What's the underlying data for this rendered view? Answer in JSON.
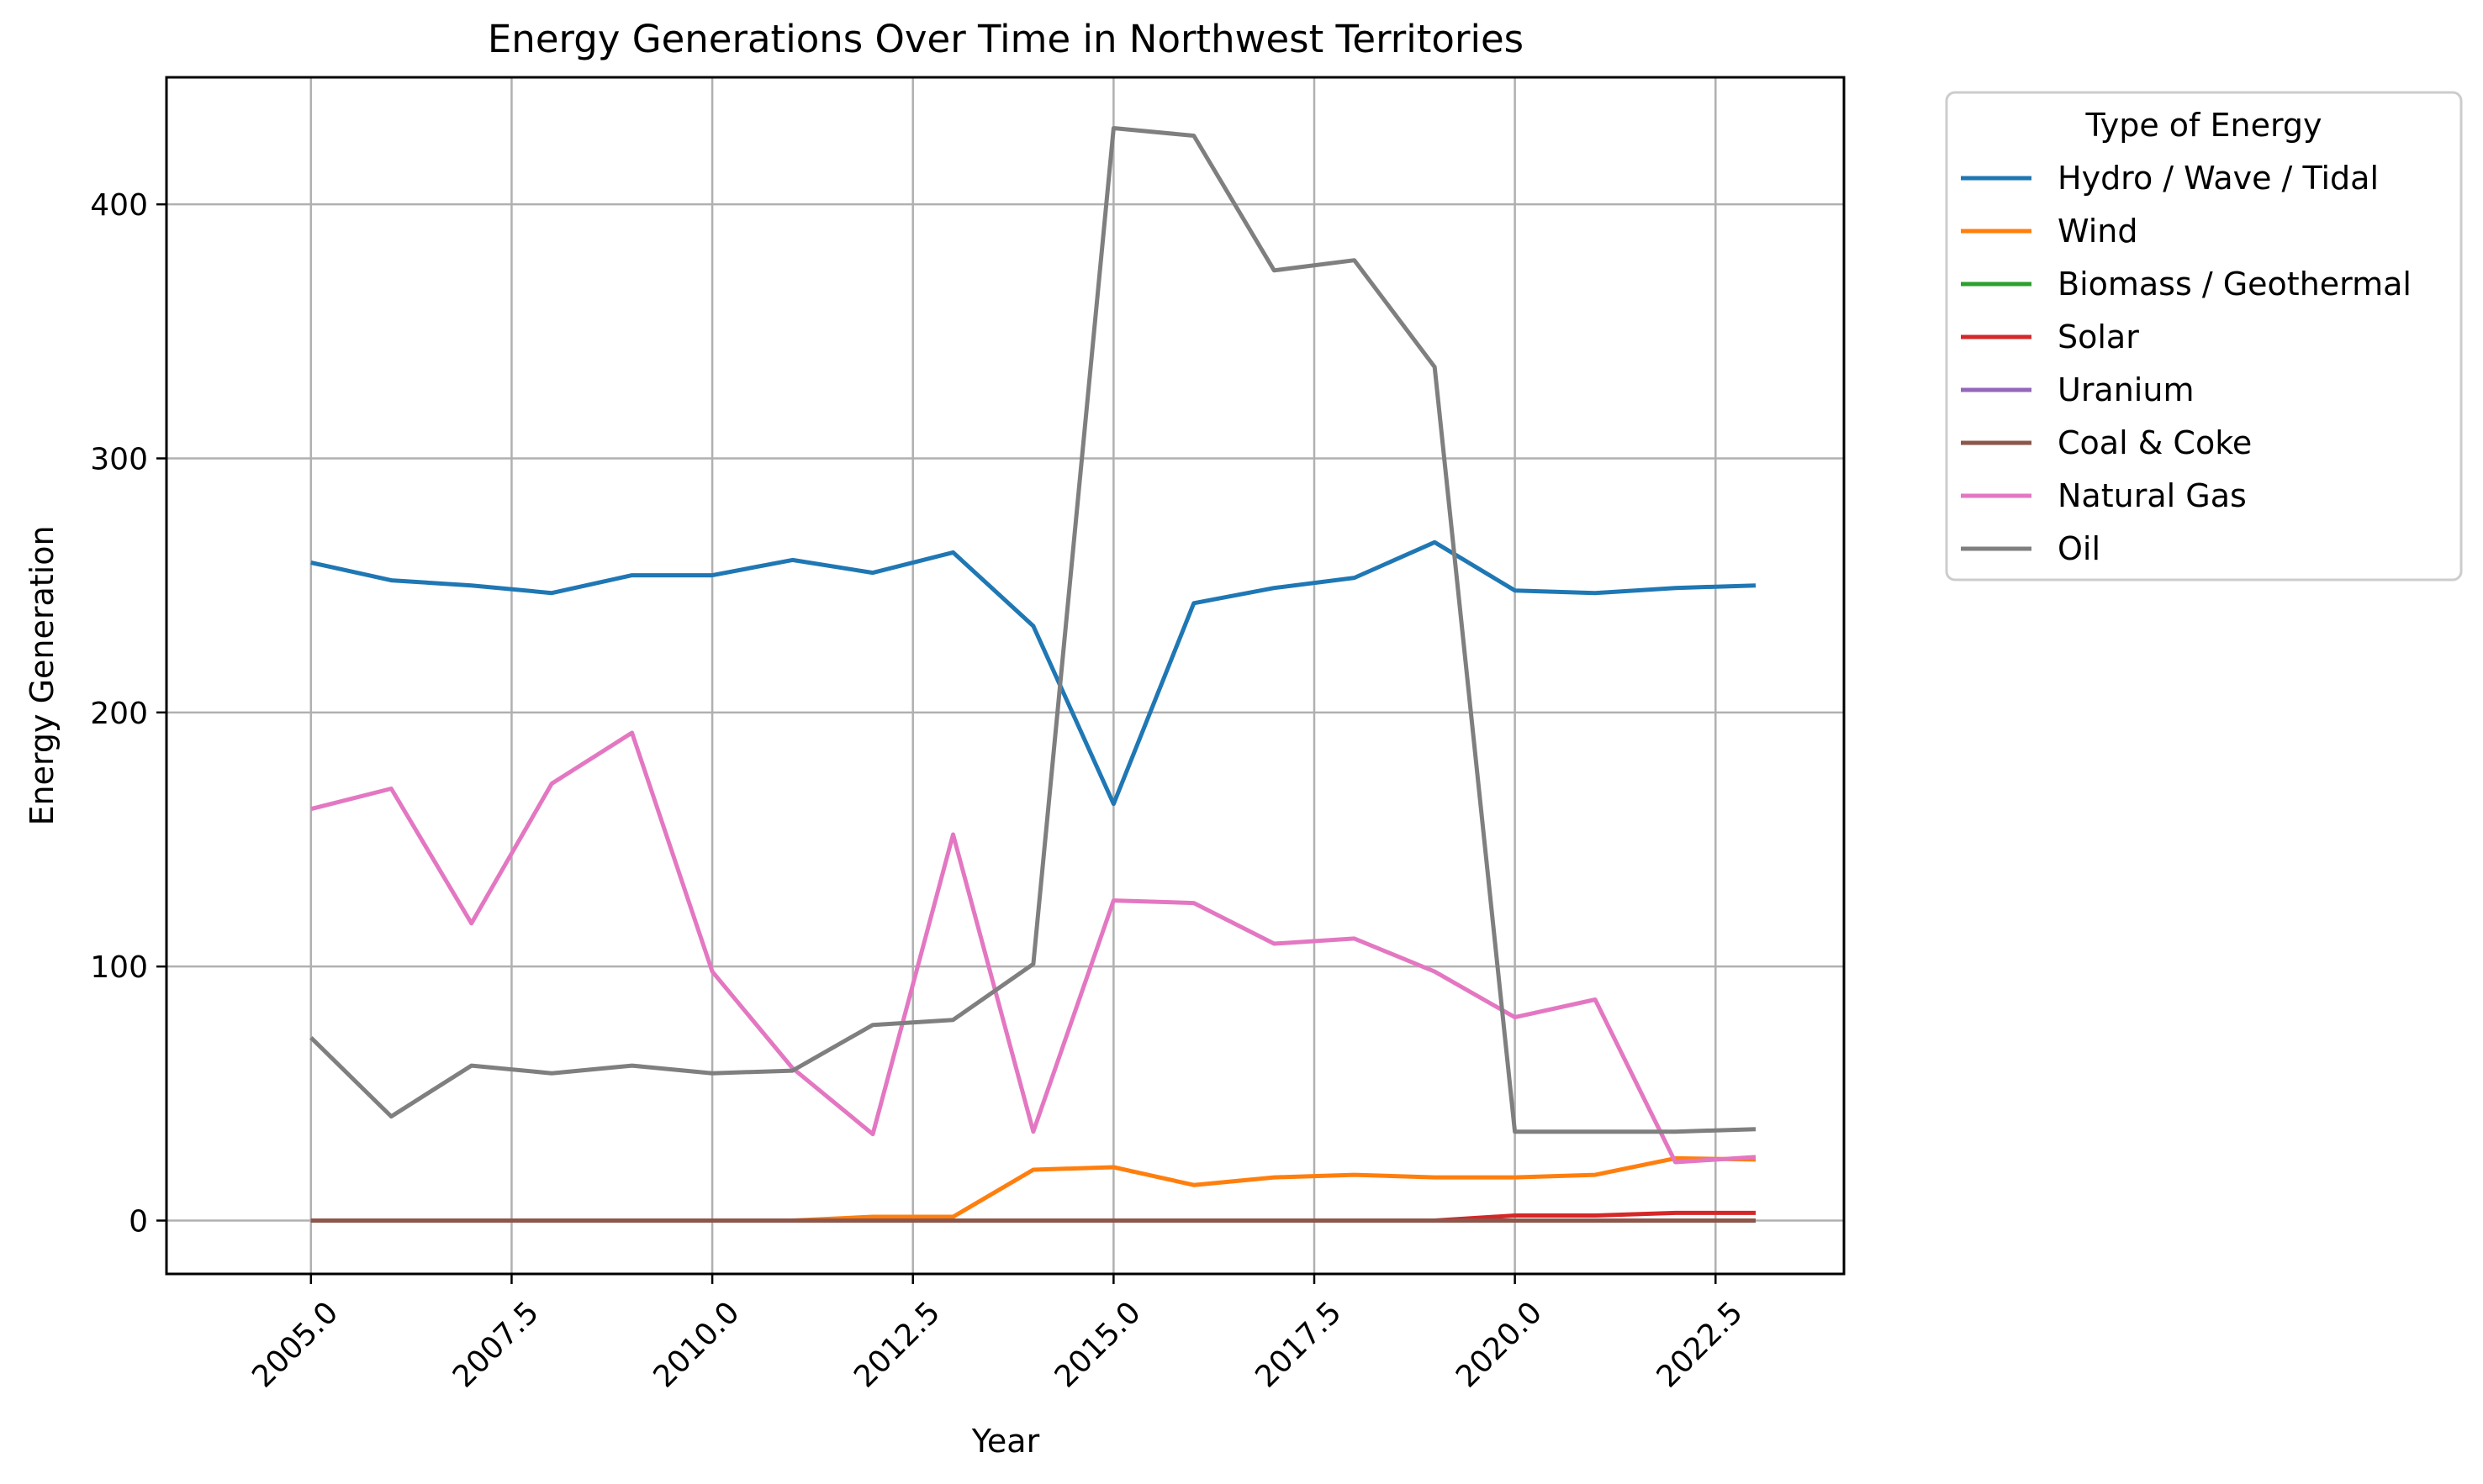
{
  "chart_data": {
    "type": "line",
    "title": "Energy Generations Over Time in Northwest Territories",
    "xlabel": "Year",
    "ylabel": "Energy Generation",
    "xlim": [
      2003.2,
      2024.1
    ],
    "ylim": [
      -21,
      450
    ],
    "xticks": [
      2005.0,
      2007.5,
      2010.0,
      2012.5,
      2015.0,
      2017.5,
      2020.0,
      2022.5
    ],
    "xtick_labels": [
      "2005.0",
      "2007.5",
      "2010.0",
      "2012.5",
      "2015.0",
      "2017.5",
      "2020.0",
      "2022.5"
    ],
    "yticks": [
      0,
      100,
      200,
      300,
      400
    ],
    "ytick_labels": [
      "0",
      "100",
      "200",
      "300",
      "400"
    ],
    "grid": true,
    "legend": {
      "title": "Type of Energy",
      "placement": "outside-right-top"
    },
    "x": [
      2005,
      2006,
      2007,
      2008,
      2009,
      2010,
      2011,
      2012,
      2013,
      2014,
      2015,
      2016,
      2017,
      2018,
      2019,
      2020,
      2021,
      2022,
      2023
    ],
    "series": [
      {
        "name": "Hydro / Wave / Tidal",
        "color": "#1f77b4",
        "values": [
          259,
          252,
          250,
          247,
          254,
          254,
          260,
          255,
          263,
          234,
          164,
          243,
          249,
          253,
          267,
          248,
          247,
          249,
          250
        ]
      },
      {
        "name": "Wind",
        "color": "#ff7f0e",
        "values": [
          0,
          0,
          0,
          0,
          0,
          0,
          0,
          1.5,
          1.5,
          20,
          21,
          14,
          17,
          18,
          17,
          17,
          18,
          24.5,
          24
        ]
      },
      {
        "name": "Biomass / Geothermal",
        "color": "#2ca02c",
        "values": [
          0,
          0,
          0,
          0,
          0,
          0,
          0,
          0,
          0,
          0,
          0,
          0,
          0,
          0,
          0,
          0,
          0,
          0,
          0
        ]
      },
      {
        "name": "Solar",
        "color": "#d62728",
        "values": [
          0,
          0,
          0,
          0,
          0,
          0,
          0,
          0,
          0,
          0,
          0,
          0,
          0,
          0,
          0,
          2,
          2,
          3,
          3
        ]
      },
      {
        "name": "Uranium",
        "color": "#9467bd",
        "values": [
          0,
          0,
          0,
          0,
          0,
          0,
          0,
          0,
          0,
          0,
          0,
          0,
          0,
          0,
          0,
          0,
          0,
          0,
          0
        ]
      },
      {
        "name": "Coal & Coke",
        "color": "#8c564b",
        "values": [
          0,
          0,
          0,
          0,
          0,
          0,
          0,
          0,
          0,
          0,
          0,
          0,
          0,
          0,
          0,
          0,
          0,
          0,
          0
        ]
      },
      {
        "name": "Natural Gas",
        "color": "#e377c2",
        "values": [
          162,
          170,
          117,
          172,
          192,
          98,
          60,
          34,
          152,
          35,
          126,
          125,
          109,
          111,
          98,
          80,
          87,
          23,
          25
        ]
      },
      {
        "name": "Oil",
        "color": "#7f7f7f",
        "values": [
          72,
          41,
          61,
          58,
          61,
          58,
          59,
          77,
          79,
          101,
          430,
          427,
          374,
          378,
          336,
          35,
          35,
          35,
          36
        ]
      }
    ]
  }
}
